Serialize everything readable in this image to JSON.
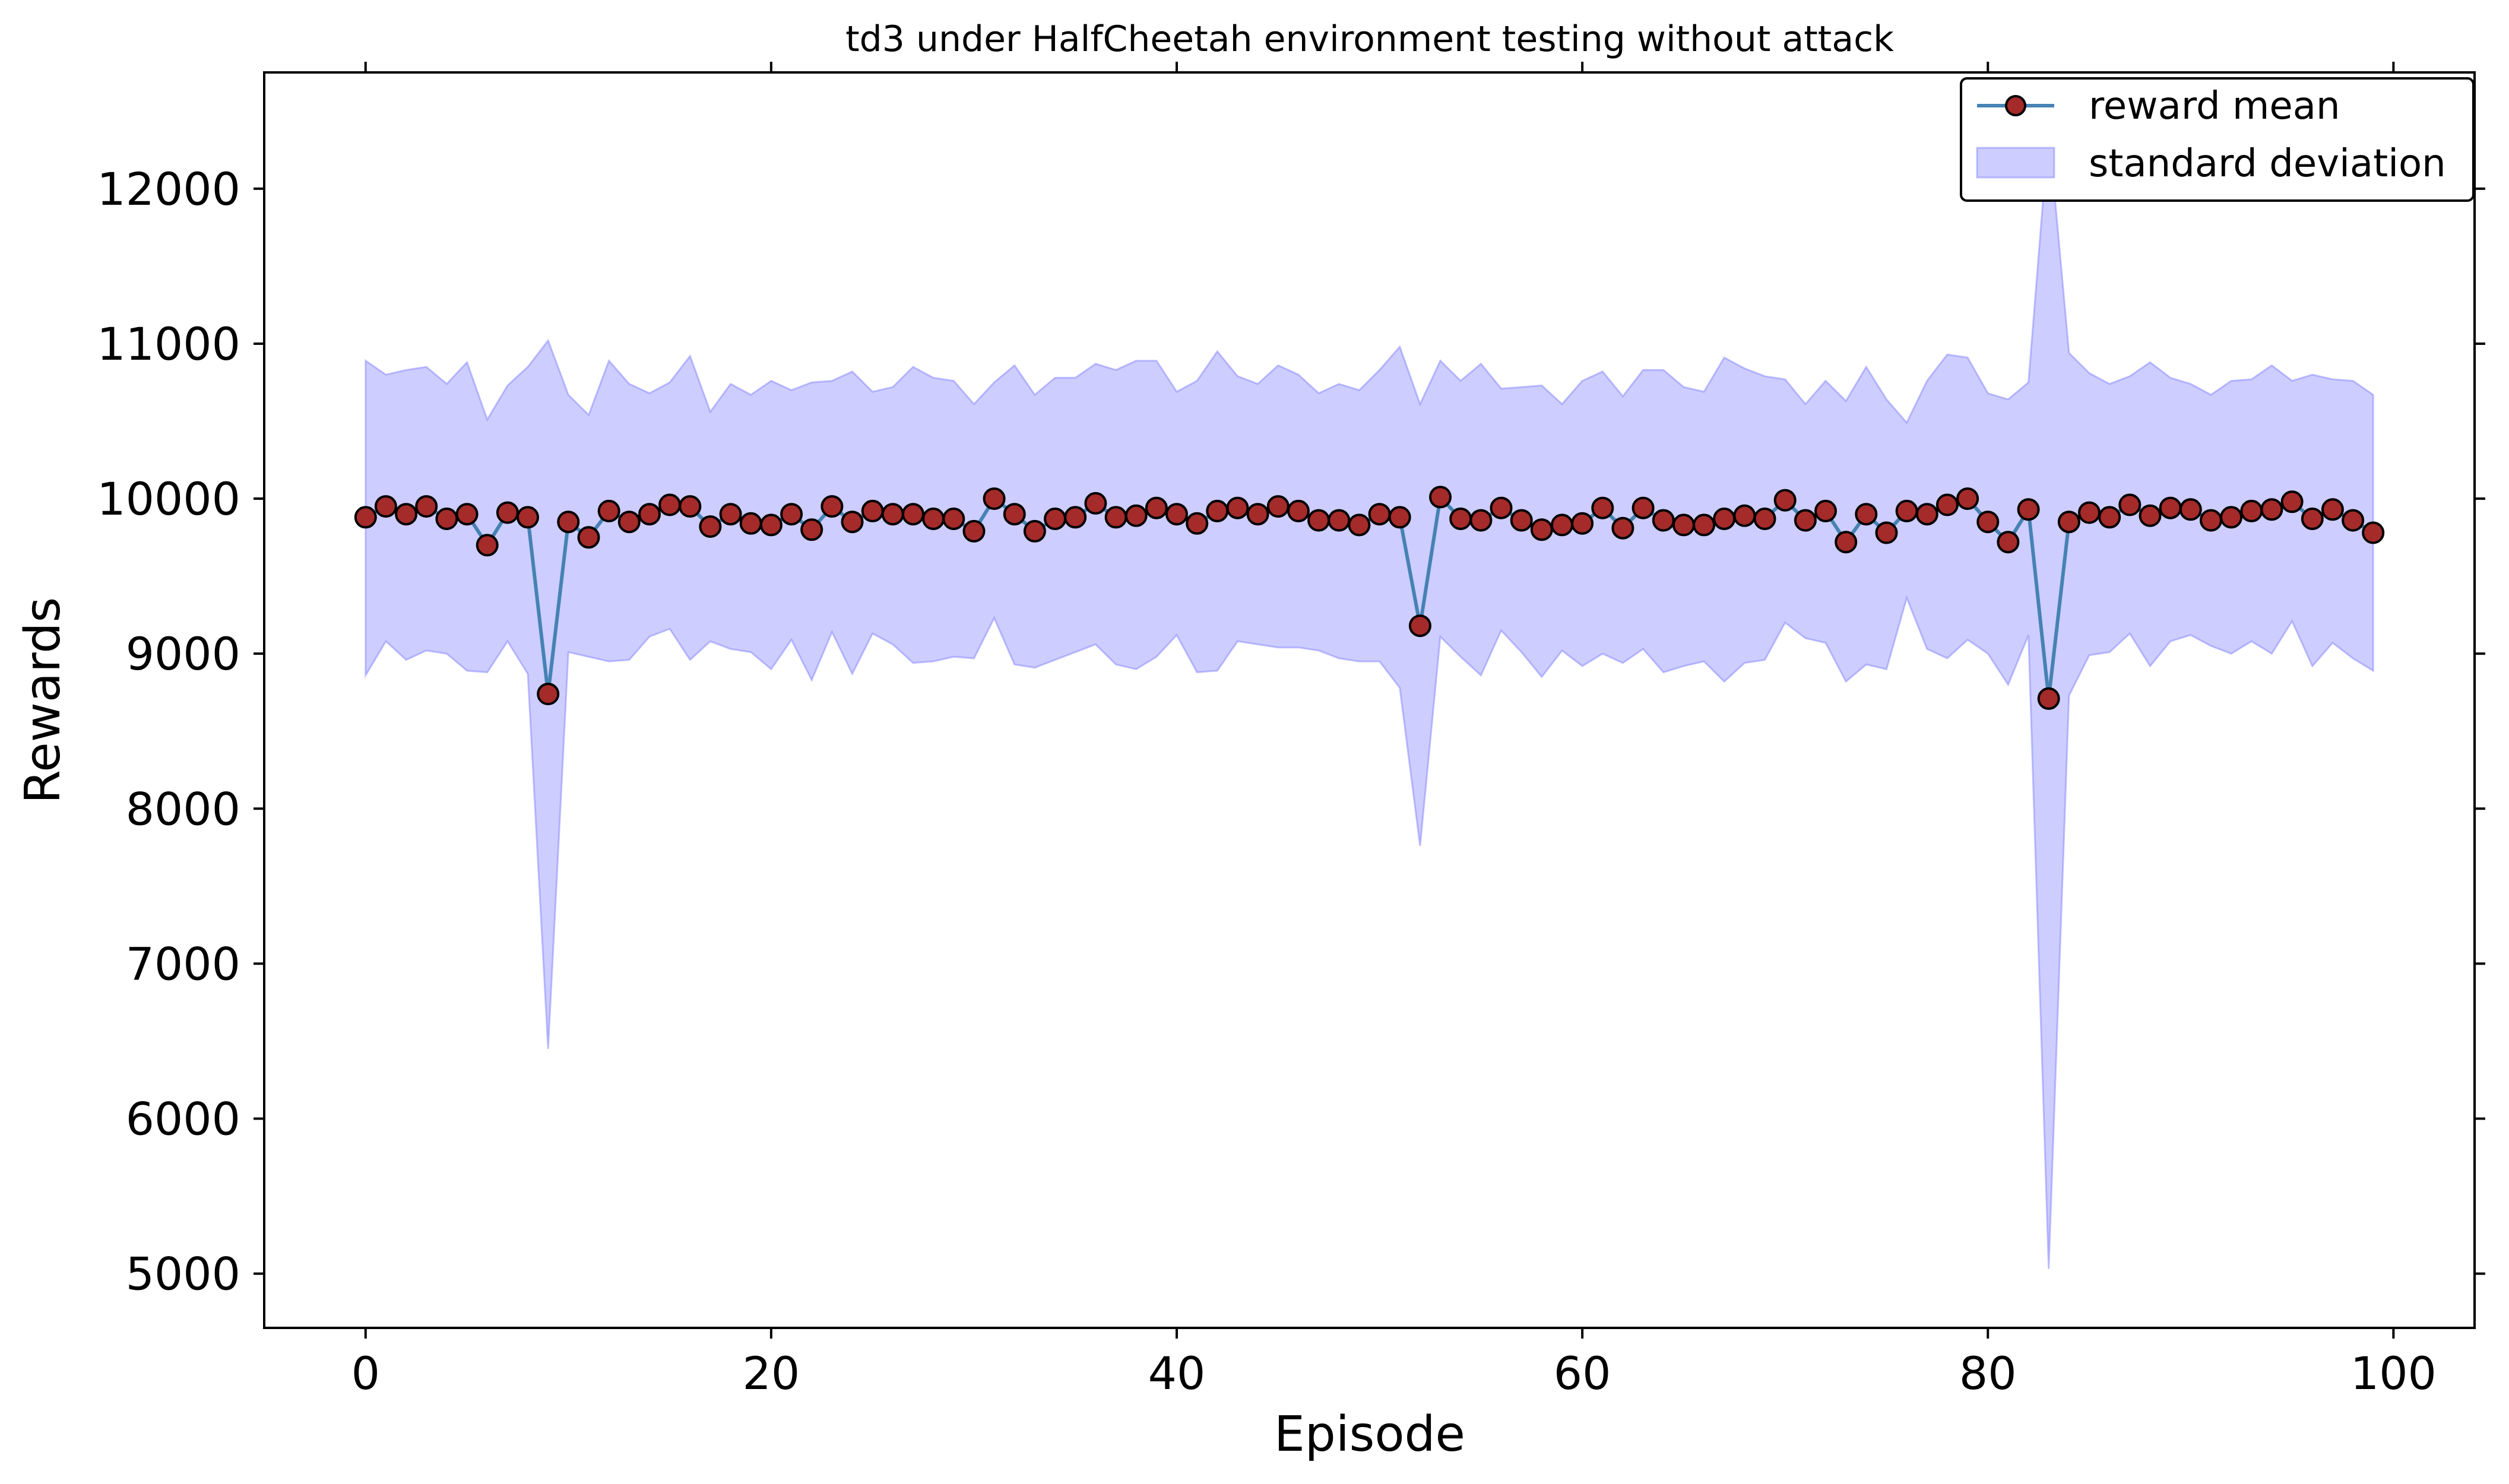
{
  "chart_data": {
    "type": "line",
    "title": "td3 under HalfCheetah environment testing without attack",
    "xlabel": "Episode",
    "ylabel": "Rewards",
    "xlim": [
      -5,
      104
    ],
    "ylim": [
      4650,
      12750
    ],
    "xticks": [
      0,
      20,
      40,
      60,
      80,
      100
    ],
    "yticks": [
      5000,
      6000,
      7000,
      8000,
      9000,
      10000,
      11000,
      12000
    ],
    "grid": false,
    "legend_position": "top-right",
    "series": [
      {
        "name": "reward mean",
        "kind": "line-markers",
        "line_color": "#4682b4",
        "marker_fill": "#a52a2a",
        "marker_edge": "#000000",
        "x": [
          0,
          1,
          2,
          3,
          4,
          5,
          6,
          7,
          8,
          9,
          10,
          11,
          12,
          13,
          14,
          15,
          16,
          17,
          18,
          19,
          20,
          21,
          22,
          23,
          24,
          25,
          26,
          27,
          28,
          29,
          30,
          31,
          32,
          33,
          34,
          35,
          36,
          37,
          38,
          39,
          40,
          41,
          42,
          43,
          44,
          45,
          46,
          47,
          48,
          49,
          50,
          51,
          52,
          53,
          54,
          55,
          56,
          57,
          58,
          59,
          60,
          61,
          62,
          63,
          64,
          65,
          66,
          67,
          68,
          69,
          70,
          71,
          72,
          73,
          74,
          75,
          76,
          77,
          78,
          79,
          80,
          81,
          82,
          83,
          84,
          85,
          86,
          87,
          88,
          89,
          90,
          91,
          92,
          93,
          94,
          95,
          96,
          97,
          98,
          99
        ],
        "values": [
          9880,
          9950,
          9900,
          9950,
          9870,
          9900,
          9700,
          9910,
          9880,
          8740,
          9850,
          9750,
          9920,
          9850,
          9900,
          9960,
          9950,
          9820,
          9900,
          9840,
          9830,
          9900,
          9800,
          9950,
          9850,
          9920,
          9900,
          9900,
          9870,
          9870,
          9790,
          10000,
          9900,
          9790,
          9870,
          9880,
          9970,
          9880,
          9890,
          9940,
          9900,
          9840,
          9920,
          9940,
          9900,
          9950,
          9920,
          9860,
          9860,
          9830,
          9900,
          9880,
          9180,
          10010,
          9870,
          9860,
          9940,
          9860,
          9800,
          9830,
          9840,
          9940,
          9810,
          9940,
          9860,
          9830,
          9830,
          9870,
          9890,
          9870,
          9990,
          9860,
          9920,
          9720,
          9900,
          9780,
          9920,
          9900,
          9960,
          10000,
          9850,
          9720,
          9930,
          8710,
          9850,
          9910,
          9880,
          9960,
          9890,
          9940,
          9930,
          9860,
          9880,
          9920,
          9930,
          9980,
          9870,
          9930,
          9860,
          9780
        ]
      },
      {
        "name": "standard deviation",
        "kind": "band",
        "color": "#7b7bff",
        "x": [
          0,
          1,
          2,
          3,
          4,
          5,
          6,
          7,
          8,
          9,
          10,
          11,
          12,
          13,
          14,
          15,
          16,
          17,
          18,
          19,
          20,
          21,
          22,
          23,
          24,
          25,
          26,
          27,
          28,
          29,
          30,
          31,
          32,
          33,
          34,
          35,
          36,
          37,
          38,
          39,
          40,
          41,
          42,
          43,
          44,
          45,
          46,
          47,
          48,
          49,
          50,
          51,
          52,
          53,
          54,
          55,
          56,
          57,
          58,
          59,
          60,
          61,
          62,
          63,
          64,
          65,
          66,
          67,
          68,
          69,
          70,
          71,
          72,
          73,
          74,
          75,
          76,
          77,
          78,
          79,
          80,
          81,
          82,
          83,
          84,
          85,
          86,
          87,
          88,
          89,
          90,
          91,
          92,
          93,
          94,
          95,
          96,
          97,
          98,
          99
        ],
        "upper": [
          10890,
          10800,
          10830,
          10850,
          10740,
          10880,
          10510,
          10730,
          10850,
          11020,
          10670,
          10540,
          10890,
          10740,
          10680,
          10750,
          10920,
          10560,
          10740,
          10670,
          10760,
          10700,
          10750,
          10760,
          10820,
          10690,
          10720,
          10850,
          10780,
          10760,
          10610,
          10750,
          10860,
          10670,
          10780,
          10780,
          10870,
          10830,
          10890,
          10890,
          10690,
          10760,
          10950,
          10790,
          10740,
          10860,
          10800,
          10680,
          10740,
          10700,
          10830,
          10980,
          10610,
          10890,
          10760,
          10870,
          10710,
          10720,
          10730,
          10610,
          10760,
          10820,
          10660,
          10830,
          10830,
          10720,
          10690,
          10910,
          10840,
          10790,
          10770,
          10610,
          10760,
          10630,
          10850,
          10640,
          10490,
          10760,
          10930,
          10910,
          10680,
          10640,
          10750,
          12380,
          10940,
          10810,
          10740,
          10790,
          10880,
          10780,
          10740,
          10670,
          10760,
          10770,
          10860,
          10760,
          10800,
          10770,
          10760,
          10670
        ],
        "lower": [
          8860,
          9080,
          8960,
          9020,
          9000,
          8890,
          8880,
          9080,
          8870,
          6450,
          9010,
          8980,
          8950,
          8960,
          9110,
          9160,
          8960,
          9080,
          9030,
          9010,
          8900,
          9090,
          8830,
          9140,
          8870,
          9130,
          9060,
          8940,
          8950,
          8980,
          8970,
          9230,
          8930,
          8910,
          8960,
          9010,
          9060,
          8930,
          8900,
          8980,
          9120,
          8880,
          8890,
          9080,
          9060,
          9040,
          9040,
          9020,
          8970,
          8950,
          8950,
          8780,
          7760,
          9110,
          8980,
          8860,
          9150,
          9010,
          8850,
          9020,
          8920,
          9000,
          8940,
          9030,
          8880,
          8920,
          8950,
          8820,
          8940,
          8960,
          9200,
          9100,
          9070,
          8820,
          8930,
          8900,
          9360,
          9030,
          8970,
          9090,
          9000,
          8800,
          9120,
          5030,
          8730,
          8990,
          9010,
          9130,
          8920,
          9080,
          9120,
          9050,
          9000,
          9080,
          9000,
          9210,
          8920,
          9070,
          8970,
          8890
        ]
      }
    ]
  }
}
